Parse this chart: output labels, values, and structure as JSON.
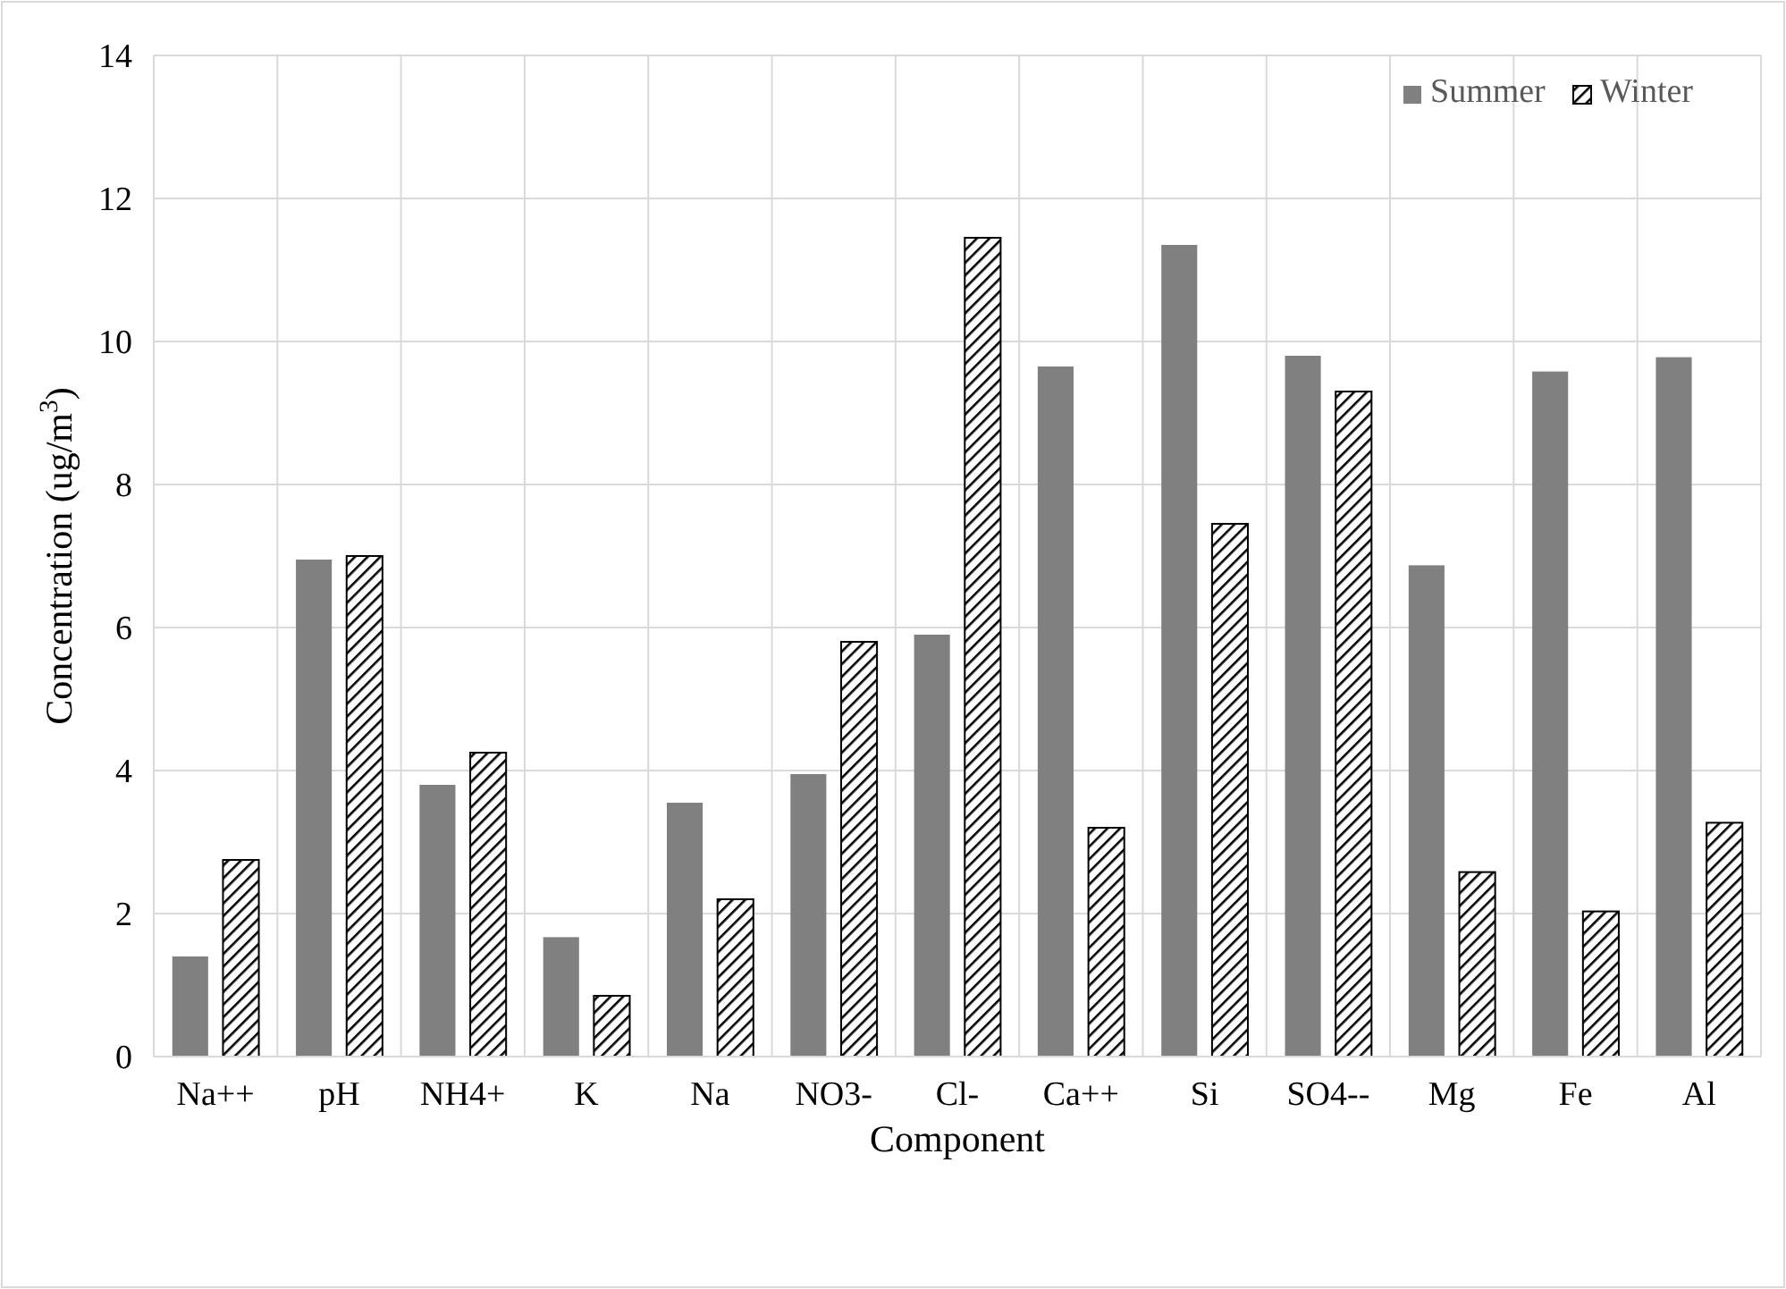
{
  "chart_data": {
    "type": "bar",
    "xlabel": "Component",
    "ylabel": "Concentration (ug/m$^{3}$)",
    "categories": [
      "Na++",
      "pH",
      "NH4+",
      "K",
      "Na",
      "NO3-",
      "Cl-",
      "Ca++",
      "Si",
      "SO4--",
      "Mg",
      "Fe",
      "Al"
    ],
    "series": [
      {
        "name": "Summer",
        "color": "#808080",
        "values": [
          1.4,
          6.95,
          3.8,
          1.67,
          3.55,
          3.95,
          5.9,
          9.65,
          11.35,
          9.8,
          6.87,
          9.58,
          9.78
        ]
      },
      {
        "name": "Winter",
        "color": "#000000",
        "values": [
          2.75,
          7.0,
          4.25,
          0.85,
          2.2,
          5.8,
          11.45,
          3.2,
          7.45,
          9.3,
          2.58,
          2.03,
          3.27
        ]
      }
    ],
    "ylim": [
      0,
      14
    ],
    "yticks": [
      0,
      2,
      4,
      6,
      8,
      10,
      12,
      14
    ],
    "grid": true,
    "legend": "top right"
  }
}
